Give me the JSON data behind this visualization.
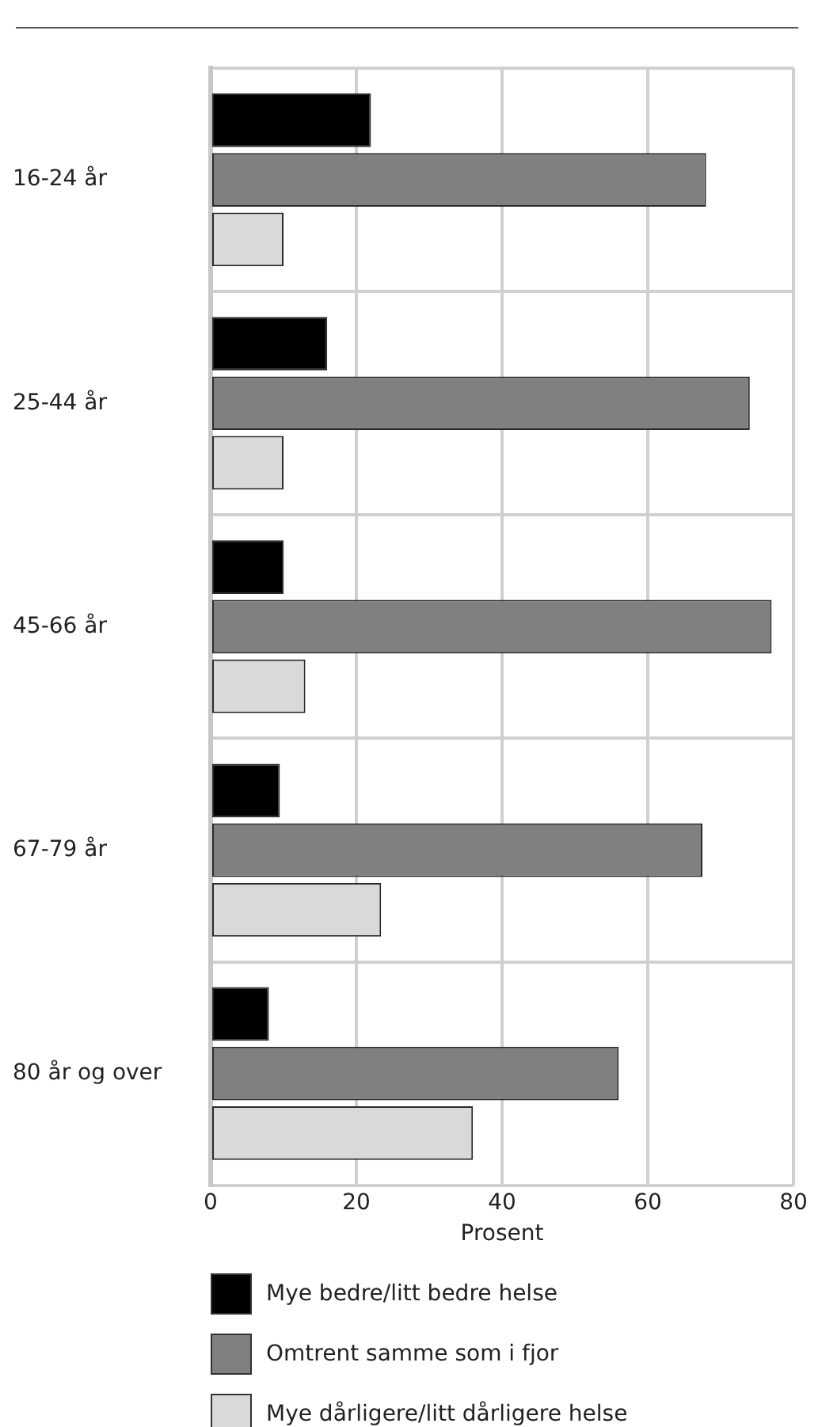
{
  "chart_data": {
    "type": "bar",
    "orientation": "horizontal",
    "xlabel": "Prosent",
    "categories": [
      "16-24 år",
      "25-44 år",
      "45-66 år",
      "67-79 år",
      "80 år og over"
    ],
    "series": [
      {
        "name": "Mye bedre/litt bedre helse",
        "color": "#000000",
        "values": [
          22,
          16,
          10,
          9.5,
          8
        ]
      },
      {
        "name": "Omtrent samme som i fjor",
        "color": "#808080",
        "values": [
          68,
          74,
          77,
          67.5,
          56
        ]
      },
      {
        "name": "Mye dårligere/litt dårligere helse",
        "color": "#d9d9d9",
        "values": [
          10,
          10,
          13,
          23.4,
          36
        ]
      }
    ],
    "xlim": [
      0,
      80
    ],
    "xticks": [
      0,
      20,
      40,
      60,
      80
    ],
    "grid": true,
    "legend": "bottom"
  }
}
